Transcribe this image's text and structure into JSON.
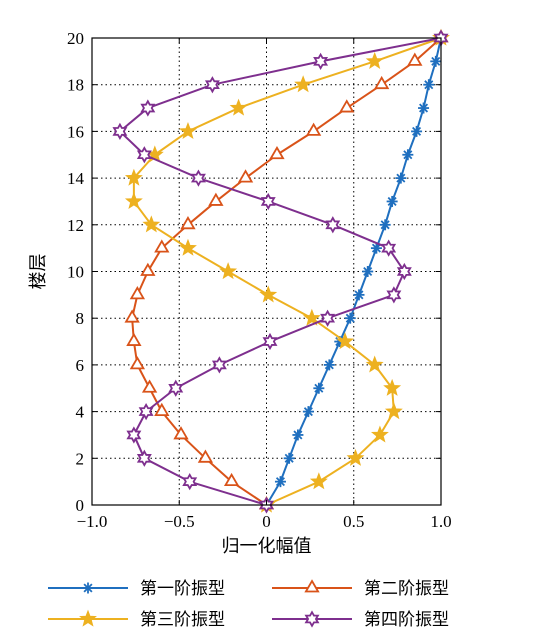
{
  "chart_data": {
    "type": "line",
    "xlabel": "归一化幅值",
    "ylabel": "楼层",
    "xlim": [
      -1.0,
      1.0
    ],
    "ylim": [
      0,
      20
    ],
    "xticks": [
      -1.0,
      -0.5,
      0,
      0.5,
      1.0
    ],
    "xtick_labels": [
      "−1.0",
      "−0.5",
      "0",
      "0.5",
      "1.0"
    ],
    "yticks": [
      0,
      2,
      4,
      6,
      8,
      10,
      12,
      14,
      16,
      18,
      20
    ],
    "ytick_labels": [
      "0",
      "2",
      "4",
      "6",
      "8",
      "10",
      "12",
      "14",
      "16",
      "18",
      "20"
    ],
    "grid": true,
    "legend_position": "bottom",
    "x_floor": [
      0,
      1,
      2,
      3,
      4,
      5,
      6,
      7,
      8,
      9,
      10,
      11,
      12,
      13,
      14,
      15,
      16,
      17,
      18,
      19,
      20
    ],
    "series": [
      {
        "name": "第一阶振型",
        "color": "#1f6fbf",
        "marker": "asterisk",
        "values": [
          0,
          0.08,
          0.13,
          0.18,
          0.24,
          0.3,
          0.36,
          0.42,
          0.48,
          0.53,
          0.58,
          0.63,
          0.68,
          0.72,
          0.77,
          0.81,
          0.86,
          0.9,
          0.93,
          0.97,
          1.0
        ]
      },
      {
        "name": "第二阶振型",
        "color": "#d95319",
        "marker": "triangle",
        "values": [
          0,
          -0.2,
          -0.35,
          -0.49,
          -0.6,
          -0.67,
          -0.74,
          -0.76,
          -0.77,
          -0.74,
          -0.68,
          -0.6,
          -0.45,
          -0.29,
          -0.12,
          0.06,
          0.27,
          0.46,
          0.66,
          0.85,
          1.0
        ]
      },
      {
        "name": "第三阶振型",
        "color": "#edb120",
        "marker": "star5",
        "values": [
          0,
          0.3,
          0.51,
          0.65,
          0.73,
          0.72,
          0.62,
          0.45,
          0.26,
          0.01,
          -0.22,
          -0.45,
          -0.66,
          -0.76,
          -0.76,
          -0.64,
          -0.45,
          -0.16,
          0.21,
          0.62,
          1.0
        ]
      },
      {
        "name": "第四阶振型",
        "color": "#7e2f8e",
        "marker": "hexagram",
        "values": [
          0,
          -0.44,
          -0.7,
          -0.76,
          -0.69,
          -0.52,
          -0.27,
          0.02,
          0.35,
          0.73,
          0.79,
          0.7,
          0.38,
          0.01,
          -0.39,
          -0.7,
          -0.84,
          -0.68,
          -0.31,
          0.31,
          1.0
        ]
      }
    ]
  }
}
